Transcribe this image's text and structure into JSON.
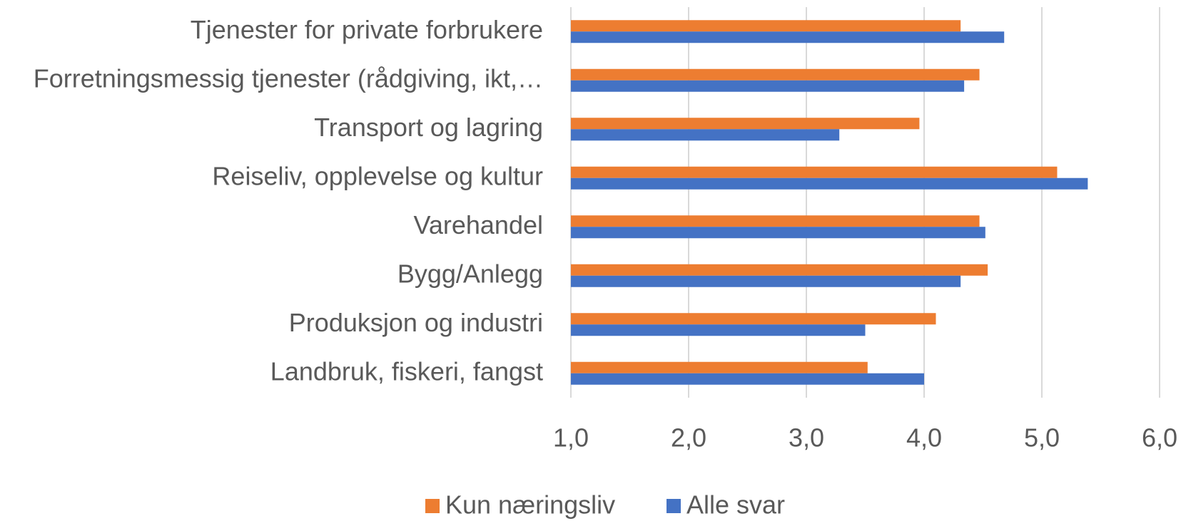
{
  "chart_data": {
    "type": "bar",
    "orientation": "horizontal",
    "categories": [
      "Tjenester for private forbrukere",
      "Forretningsmessig tjenester (rådgiving, ikt,…",
      "Transport og lagring",
      "Reiseliv, opplevelse og kultur",
      "Varehandel",
      "Bygg/Anlegg",
      "Produksjon og industri",
      "Landbruk, fiskeri, fangst"
    ],
    "series": [
      {
        "name": "Kun næringsliv",
        "color": "#ed7d31",
        "values": [
          4.31,
          4.47,
          3.96,
          5.13,
          4.47,
          4.54,
          4.1,
          3.52
        ]
      },
      {
        "name": "Alle svar",
        "color": "#4472c4",
        "values": [
          4.68,
          4.34,
          3.28,
          5.39,
          4.52,
          4.31,
          3.5,
          4.0
        ]
      }
    ],
    "xlim": [
      1,
      6
    ],
    "xticks": [
      {
        "value": 1,
        "label": "1,0"
      },
      {
        "value": 2,
        "label": "2,0"
      },
      {
        "value": 3,
        "label": "3,0"
      },
      {
        "value": 4,
        "label": "4,0"
      },
      {
        "value": 5,
        "label": "5,0"
      },
      {
        "value": 6,
        "label": "6,0"
      }
    ],
    "grid": true,
    "legend": "bottom"
  }
}
